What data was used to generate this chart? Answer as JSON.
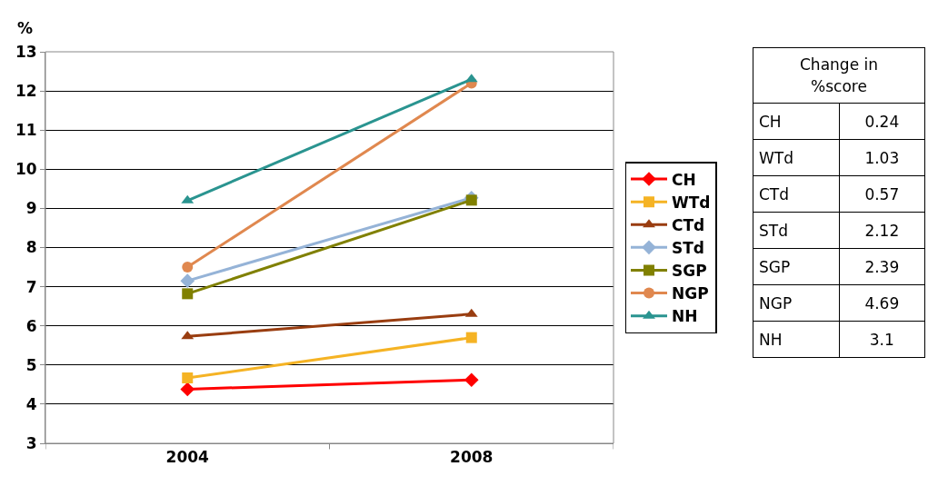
{
  "chart_data": [
    {
      "type": "line",
      "ylabel": "%",
      "categories": [
        "2004",
        "2008"
      ],
      "ylim": [
        3,
        13
      ],
      "yticks": [
        3,
        4,
        5,
        6,
        7,
        8,
        9,
        10,
        11,
        12,
        13
      ],
      "grid": "y",
      "legend": "right",
      "series": [
        {
          "name": "CH",
          "color": "#ff0000",
          "marker": "diamond",
          "values": [
            4.38,
            4.62
          ]
        },
        {
          "name": "WTd",
          "color": "#f5b324",
          "marker": "square",
          "values": [
            4.67,
            5.7
          ]
        },
        {
          "name": "CTd",
          "color": "#993d10",
          "marker": "triangle",
          "values": [
            5.73,
            6.3
          ]
        },
        {
          "name": "STd",
          "color": "#95b3d7",
          "marker": "diamond",
          "values": [
            7.15,
            9.27
          ]
        },
        {
          "name": "SGP",
          "color": "#808000",
          "marker": "square",
          "values": [
            6.82,
            9.21
          ]
        },
        {
          "name": "NGP",
          "color": "#e0884f",
          "marker": "circle",
          "values": [
            7.5,
            12.2
          ]
        },
        {
          "name": "NH",
          "color": "#2a9490",
          "marker": "triangle",
          "values": [
            9.2,
            12.3
          ]
        }
      ]
    },
    {
      "type": "other",
      "title": "Change in %score",
      "data_labels": true,
      "categories": [
        "CH",
        "WTd",
        "CTd",
        "STd",
        "SGP",
        "NGP",
        "NH"
      ],
      "values": [
        0.24,
        1.03,
        0.57,
        2.12,
        2.39,
        4.69,
        3.1
      ]
    }
  ]
}
